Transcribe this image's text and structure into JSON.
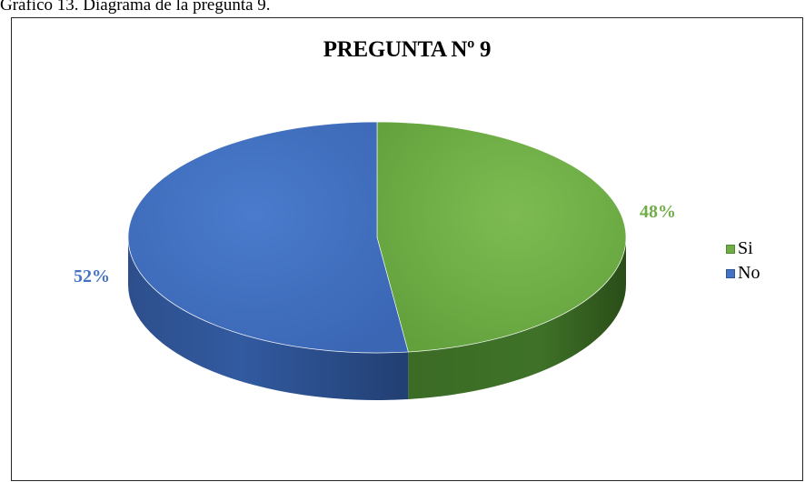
{
  "caption": "Gráfico 13. Diagrama de la pregunta 9.",
  "chart_data": {
    "type": "pie",
    "title": "PREGUNTA Nº 9",
    "categories": [
      "Si",
      "No"
    ],
    "values": [
      48,
      52
    ],
    "value_labels": [
      "48%",
      "52%"
    ],
    "colors": [
      "#70AD47",
      "#4472C4"
    ],
    "legend_position": "right",
    "three_d": true
  }
}
